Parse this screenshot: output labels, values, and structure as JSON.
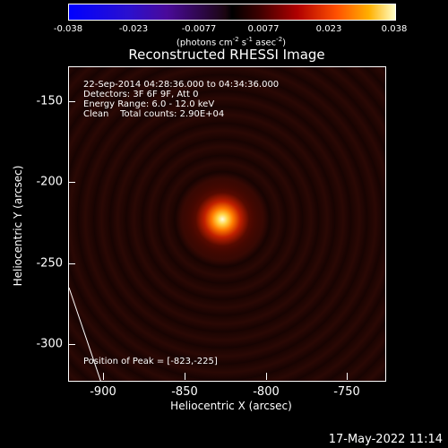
{
  "colorbar": {
    "ticks": [
      "-0.038",
      "-0.023",
      "-0.0077",
      "0.0077",
      "0.023",
      "0.038"
    ],
    "units_prefix": "(photons cm",
    "units_exp1": "-2",
    "units_mid": " s",
    "units_exp2": "-1",
    "units_mid2": " asec",
    "units_exp3": "-2",
    "units_suffix": ")"
  },
  "title": "Reconstructed RHESSI Image",
  "info": {
    "line1": "22-Sep-2014 04:28:36.000 to 04:34:36.000",
    "line2": "Detectors: 3F 6F 9F, Att 0",
    "line3": "Energy Range: 6.0 - 12.0 keV",
    "line4": "Clean    Total counts: 2.90E+04",
    "peak": "Position of Peak = [-823,-225]"
  },
  "axes": {
    "xlabel": "Heliocentric X (arcsec)",
    "ylabel": "Heliocentric Y (arcsec)",
    "xticks": [
      "-900",
      "-850",
      "-800",
      "-750"
    ],
    "yticks": [
      "-150",
      "-200",
      "-250",
      "-300"
    ]
  },
  "footer": {
    "date": "17-May-2022 11:14"
  },
  "colors": {
    "background": "#000000",
    "peak": "#ffffe0",
    "mid": "#ff7a00"
  }
}
